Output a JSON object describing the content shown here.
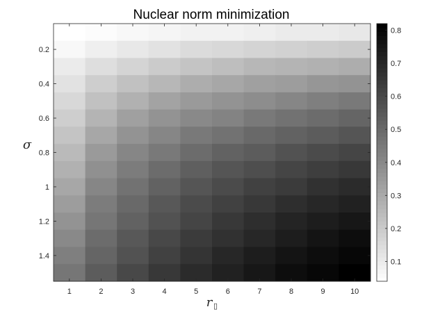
{
  "chart_data": {
    "type": "heatmap",
    "title": "Nuclear norm minimization",
    "xlabel": {
      "main": "r",
      "sub": "▯"
    },
    "ylabel": "σ",
    "x": [
      1,
      2,
      3,
      4,
      5,
      6,
      7,
      8,
      9,
      10
    ],
    "y": [
      0.1,
      0.2,
      0.3,
      0.4,
      0.5,
      0.6,
      0.7,
      0.8,
      0.9,
      1.0,
      1.1,
      1.2,
      1.3,
      1.4,
      1.5
    ],
    "x_ticks": [
      "1",
      "2",
      "3",
      "4",
      "5",
      "6",
      "7",
      "8",
      "9",
      "10"
    ],
    "y_ticks": [
      {
        "value": 0.2,
        "label": "0.2"
      },
      {
        "value": 0.4,
        "label": "0.4"
      },
      {
        "value": 0.6,
        "label": "0.6"
      },
      {
        "value": 0.8,
        "label": "0.8"
      },
      {
        "value": 1.0,
        "label": "1"
      },
      {
        "value": 1.2,
        "label": "1.2"
      },
      {
        "value": 1.4,
        "label": "1.4"
      }
    ],
    "xlim": [
      0.5,
      10.5
    ],
    "ylim": [
      0.05,
      1.55
    ],
    "y_reversed": true,
    "colormap": "gray-reversed",
    "clim": [
      0.04,
      0.82
    ],
    "colorbar": {
      "position": "right",
      "ticks": [
        {
          "value": 0.1,
          "label": "0.1"
        },
        {
          "value": 0.2,
          "label": "0.2"
        },
        {
          "value": 0.3,
          "label": "0.3"
        },
        {
          "value": 0.4,
          "label": "0.4"
        },
        {
          "value": 0.5,
          "label": "0.5"
        },
        {
          "value": 0.6,
          "label": "0.6"
        },
        {
          "value": 0.7,
          "label": "0.7"
        },
        {
          "value": 0.8,
          "label": "0.8"
        }
      ]
    },
    "grid": false,
    "values": [
      [
        0.04,
        0.05,
        0.06,
        0.07,
        0.08,
        0.08,
        0.09,
        0.1,
        0.1,
        0.11
      ],
      [
        0.06,
        0.09,
        0.11,
        0.13,
        0.15,
        0.16,
        0.17,
        0.18,
        0.19,
        0.2
      ],
      [
        0.1,
        0.14,
        0.17,
        0.2,
        0.22,
        0.24,
        0.26,
        0.27,
        0.28,
        0.29
      ],
      [
        0.13,
        0.19,
        0.23,
        0.26,
        0.29,
        0.31,
        0.33,
        0.34,
        0.36,
        0.37
      ],
      [
        0.16,
        0.23,
        0.28,
        0.32,
        0.35,
        0.37,
        0.39,
        0.41,
        0.43,
        0.45
      ],
      [
        0.19,
        0.27,
        0.33,
        0.37,
        0.4,
        0.42,
        0.45,
        0.47,
        0.49,
        0.51
      ],
      [
        0.22,
        0.31,
        0.37,
        0.41,
        0.45,
        0.47,
        0.5,
        0.52,
        0.54,
        0.56
      ],
      [
        0.25,
        0.35,
        0.41,
        0.45,
        0.49,
        0.52,
        0.54,
        0.57,
        0.59,
        0.61
      ],
      [
        0.28,
        0.38,
        0.44,
        0.49,
        0.53,
        0.56,
        0.58,
        0.61,
        0.63,
        0.65
      ],
      [
        0.31,
        0.41,
        0.47,
        0.52,
        0.56,
        0.59,
        0.62,
        0.64,
        0.67,
        0.69
      ],
      [
        0.34,
        0.44,
        0.5,
        0.55,
        0.59,
        0.62,
        0.65,
        0.68,
        0.7,
        0.72
      ],
      [
        0.37,
        0.46,
        0.52,
        0.57,
        0.61,
        0.65,
        0.68,
        0.71,
        0.73,
        0.75
      ],
      [
        0.4,
        0.49,
        0.55,
        0.6,
        0.64,
        0.67,
        0.7,
        0.73,
        0.76,
        0.78
      ],
      [
        0.43,
        0.51,
        0.57,
        0.62,
        0.66,
        0.7,
        0.73,
        0.76,
        0.78,
        0.8
      ],
      [
        0.46,
        0.54,
        0.6,
        0.65,
        0.69,
        0.72,
        0.75,
        0.78,
        0.8,
        0.82
      ]
    ]
  }
}
